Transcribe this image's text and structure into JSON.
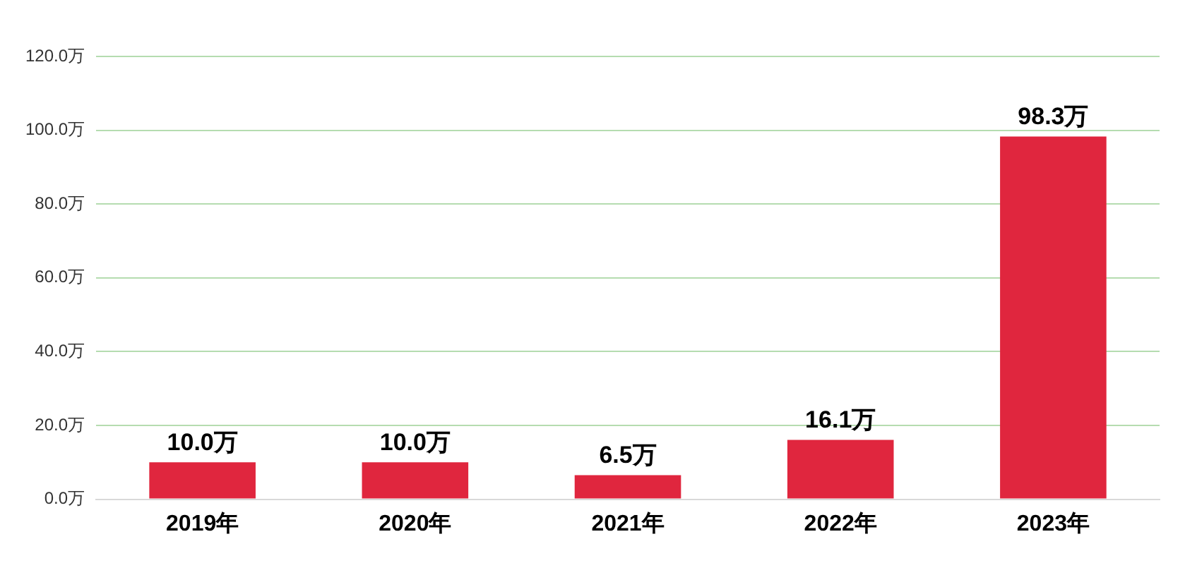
{
  "chart_data": {
    "type": "bar",
    "categories": [
      "2019年",
      "2020年",
      "2021年",
      "2022年",
      "2023年"
    ],
    "values": [
      10.0,
      10.0,
      6.5,
      16.1,
      98.3
    ],
    "value_labels": [
      "10.0万",
      "10.0万",
      "6.5万",
      "16.1万",
      "98.3万"
    ],
    "color": "#e0263e",
    "ylim": [
      0,
      120
    ],
    "yticks": [
      {
        "value": 0,
        "label": "0.0万"
      },
      {
        "value": 20,
        "label": "20.0万"
      },
      {
        "value": 40,
        "label": "40.0万"
      },
      {
        "value": 60,
        "label": "60.0万"
      },
      {
        "value": 80,
        "label": "80.0万"
      },
      {
        "value": 100,
        "label": "100.0万"
      },
      {
        "value": 120,
        "label": "120.0万"
      }
    ],
    "grid": "y"
  }
}
